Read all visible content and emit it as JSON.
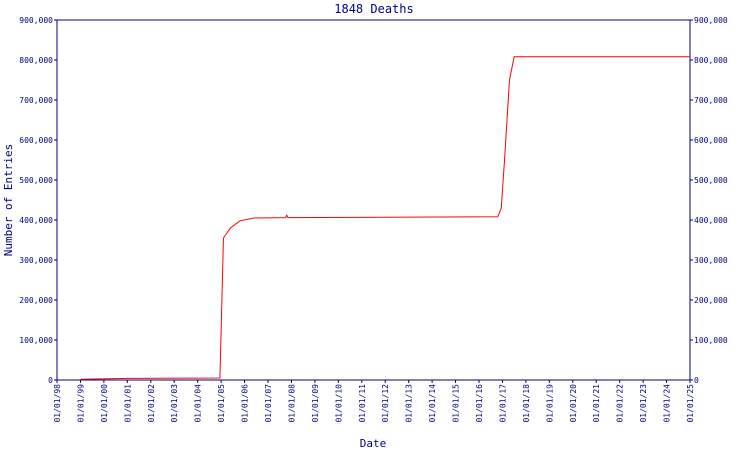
{
  "chart_data": {
    "type": "line",
    "title": "1848 Deaths",
    "xlabel": "Date",
    "ylabel": "Number of Entries",
    "series": [
      {
        "color": "#ff0000",
        "x": [
          1999.0,
          2001.0,
          2004.95,
          2005.1,
          2005.4,
          2005.8,
          2006.4,
          2007.75,
          2007.8,
          2007.85,
          2016.8,
          2016.95,
          2017.1,
          2017.3,
          2017.5,
          2025.0
        ],
        "values": [
          2000,
          4000,
          5000,
          355000,
          380000,
          398000,
          405000,
          406000,
          412000,
          406000,
          408000,
          430000,
          560000,
          750000,
          808000,
          808000
        ]
      }
    ],
    "xlim": [
      1998,
      2025
    ],
    "xticks": [
      {
        "value": 1998,
        "label": "01/01/98"
      },
      {
        "value": 1999,
        "label": "01/01/99"
      },
      {
        "value": 2000,
        "label": "01/01/00"
      },
      {
        "value": 2001,
        "label": "01/01/01"
      },
      {
        "value": 2002,
        "label": "01/01/02"
      },
      {
        "value": 2003,
        "label": "01/01/03"
      },
      {
        "value": 2004,
        "label": "01/01/04"
      },
      {
        "value": 2005,
        "label": "01/01/05"
      },
      {
        "value": 2006,
        "label": "01/01/06"
      },
      {
        "value": 2007,
        "label": "01/01/07"
      },
      {
        "value": 2008,
        "label": "01/01/08"
      },
      {
        "value": 2009,
        "label": "01/01/09"
      },
      {
        "value": 2010,
        "label": "01/01/10"
      },
      {
        "value": 2011,
        "label": "01/01/11"
      },
      {
        "value": 2012,
        "label": "01/01/12"
      },
      {
        "value": 2013,
        "label": "01/01/13"
      },
      {
        "value": 2014,
        "label": "01/01/14"
      },
      {
        "value": 2015,
        "label": "01/01/15"
      },
      {
        "value": 2016,
        "label": "01/01/16"
      },
      {
        "value": 2017,
        "label": "01/01/17"
      },
      {
        "value": 2018,
        "label": "01/01/18"
      },
      {
        "value": 2019,
        "label": "01/01/19"
      },
      {
        "value": 2020,
        "label": "01/01/20"
      },
      {
        "value": 2021,
        "label": "01/01/21"
      },
      {
        "value": 2022,
        "label": "01/01/22"
      },
      {
        "value": 2023,
        "label": "01/01/23"
      },
      {
        "value": 2024,
        "label": "01/01/24"
      },
      {
        "value": 2025,
        "label": "01/01/25"
      }
    ],
    "ylim": [
      0,
      900000
    ],
    "yticks": [
      0,
      {
        "value": 100000,
        "label": "100,000"
      },
      {
        "value": 200000,
        "label": "200,000"
      },
      {
        "value": 300000,
        "label": "300,000"
      },
      {
        "value": 400000,
        "label": "400,000"
      },
      {
        "value": 500000,
        "label": "500,000"
      },
      {
        "value": 600000,
        "label": "600,000"
      },
      {
        "value": 700000,
        "label": "700,000"
      },
      {
        "value": 800000,
        "label": "800,000"
      },
      {
        "value": 900000,
        "label": "900,000"
      }
    ],
    "grid": false
  }
}
